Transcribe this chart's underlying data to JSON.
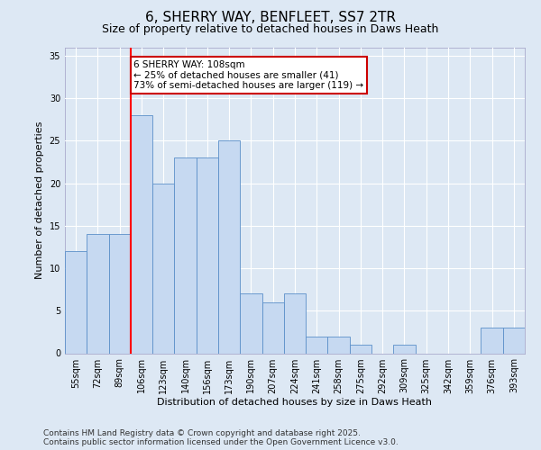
{
  "title": "6, SHERRY WAY, BENFLEET, SS7 2TR",
  "subtitle": "Size of property relative to detached houses in Daws Heath",
  "xlabel": "Distribution of detached houses by size in Daws Heath",
  "ylabel": "Number of detached properties",
  "categories": [
    "55sqm",
    "72sqm",
    "89sqm",
    "106sqm",
    "123sqm",
    "140sqm",
    "156sqm",
    "173sqm",
    "190sqm",
    "207sqm",
    "224sqm",
    "241sqm",
    "258sqm",
    "275sqm",
    "292sqm",
    "309sqm",
    "325sqm",
    "342sqm",
    "359sqm",
    "376sqm",
    "393sqm"
  ],
  "values": [
    12,
    14,
    14,
    28,
    20,
    23,
    23,
    25,
    7,
    6,
    7,
    2,
    2,
    1,
    0,
    1,
    0,
    0,
    0,
    3,
    3
  ],
  "bar_color": "#c6d9f1",
  "bar_edge_color": "#5b8fc9",
  "red_line_index": 3,
  "annotation_line1": "6 SHERRY WAY: 108sqm",
  "annotation_line2": "← 25% of detached houses are smaller (41)",
  "annotation_line3": "73% of semi-detached houses are larger (119) →",
  "annotation_box_color": "#ffffff",
  "annotation_box_edge": "#cc0000",
  "ylim": [
    0,
    36
  ],
  "yticks": [
    0,
    5,
    10,
    15,
    20,
    25,
    30,
    35
  ],
  "background_color": "#dde8f4",
  "plot_bg_color": "#dde8f4",
  "grid_color": "#ffffff",
  "footer": "Contains HM Land Registry data © Crown copyright and database right 2025.\nContains public sector information licensed under the Open Government Licence v3.0.",
  "title_fontsize": 11,
  "subtitle_fontsize": 9,
  "label_fontsize": 8,
  "tick_fontsize": 7,
  "footer_fontsize": 6.5,
  "annotation_fontsize": 7.5
}
